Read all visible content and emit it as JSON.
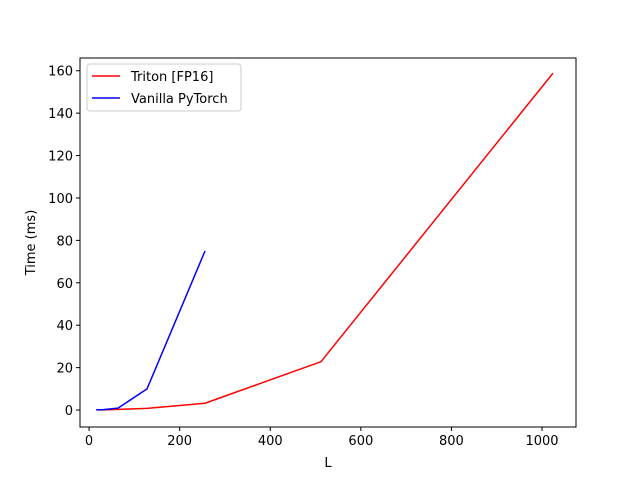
{
  "chart_data": {
    "type": "line",
    "title": "",
    "xlabel": "L",
    "ylabel": "Time (ms)",
    "xlim": [
      -20,
      1075
    ],
    "ylim": [
      -8,
      166
    ],
    "xticks": [
      0,
      200,
      400,
      600,
      800,
      1000
    ],
    "yticks": [
      0,
      20,
      40,
      60,
      80,
      100,
      120,
      140,
      160
    ],
    "grid": false,
    "legend_position": "upper-left",
    "series": [
      {
        "name": "Triton [FP16]",
        "color": "#ff0000",
        "x": [
          16,
          32,
          64,
          128,
          256,
          512,
          1024
        ],
        "y": [
          0.05,
          0.1,
          0.3,
          0.8,
          3.2,
          22.8,
          158.8
        ]
      },
      {
        "name": "Vanilla PyTorch",
        "color": "#0000ff",
        "x": [
          16,
          32,
          64,
          128,
          256
        ],
        "y": [
          0.1,
          0.2,
          0.9,
          10,
          75
        ]
      }
    ]
  }
}
